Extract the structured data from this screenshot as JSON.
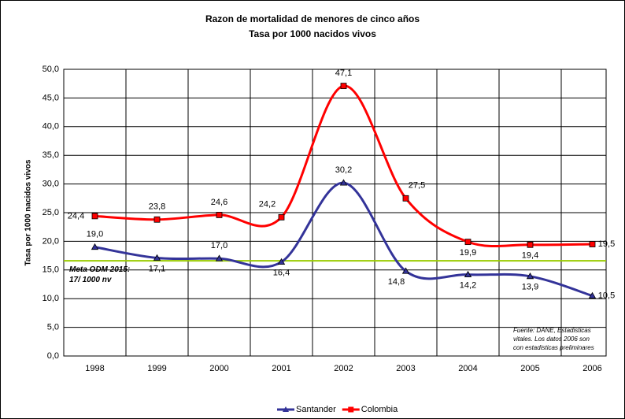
{
  "chart_data": {
    "type": "line",
    "title": "Razon de mortalidad de menores de cinco años",
    "subtitle": "Tasa por 1000 nacidos vivos",
    "y_label": "Tasa por 1000 nacidos vivos",
    "categories": [
      "1998",
      "1999",
      "2000",
      "2001",
      "2002",
      "2003",
      "2004",
      "2005",
      "2006"
    ],
    "series": [
      {
        "name": "Santander",
        "color": "#333399",
        "marker": "triangle",
        "values": [
          19.0,
          17.1,
          17.0,
          16.4,
          30.2,
          14.8,
          14.2,
          13.9,
          10.5
        ],
        "value_labels": [
          "19,0",
          "17,1",
          "17,0",
          "16,4",
          "30,2",
          "14,8",
          "14,2",
          "13,9",
          "10,5"
        ]
      },
      {
        "name": "Colombia",
        "color": "#ff0000",
        "marker": "square",
        "values": [
          24.4,
          23.8,
          24.6,
          24.2,
          47.1,
          27.5,
          19.9,
          19.4,
          19.5
        ],
        "value_labels": [
          "24,4",
          "23,8",
          "24,6",
          "24,2",
          "47,1",
          "27,5",
          "19,9",
          "19,4",
          "19,5"
        ]
      }
    ],
    "reference_line": {
      "value": 16.6,
      "color": "#99cc00",
      "label_lines": [
        "Meta ODM 2015:",
        "17/ 1000 nv"
      ]
    },
    "note_lines": [
      "Fuente: DANE, Estadisticas",
      "vitales. Los datos 2006 son",
      "con estadisticas preliminares"
    ],
    "ylim": [
      0,
      50
    ],
    "yticks": [
      {
        "value": 0,
        "label": "0,0"
      },
      {
        "value": 5,
        "label": "5,0"
      },
      {
        "value": 10,
        "label": "10,0"
      },
      {
        "value": 15,
        "label": "15,0"
      },
      {
        "value": 20,
        "label": "20,0"
      },
      {
        "value": 25,
        "label": "25,0"
      },
      {
        "value": 30,
        "label": "30,0"
      },
      {
        "value": 35,
        "label": "35,0"
      },
      {
        "value": 40,
        "label": "40,0"
      },
      {
        "value": 45,
        "label": "45,0"
      },
      {
        "value": 50,
        "label": "50,0"
      }
    ],
    "grid": true,
    "legend": "bottom"
  }
}
